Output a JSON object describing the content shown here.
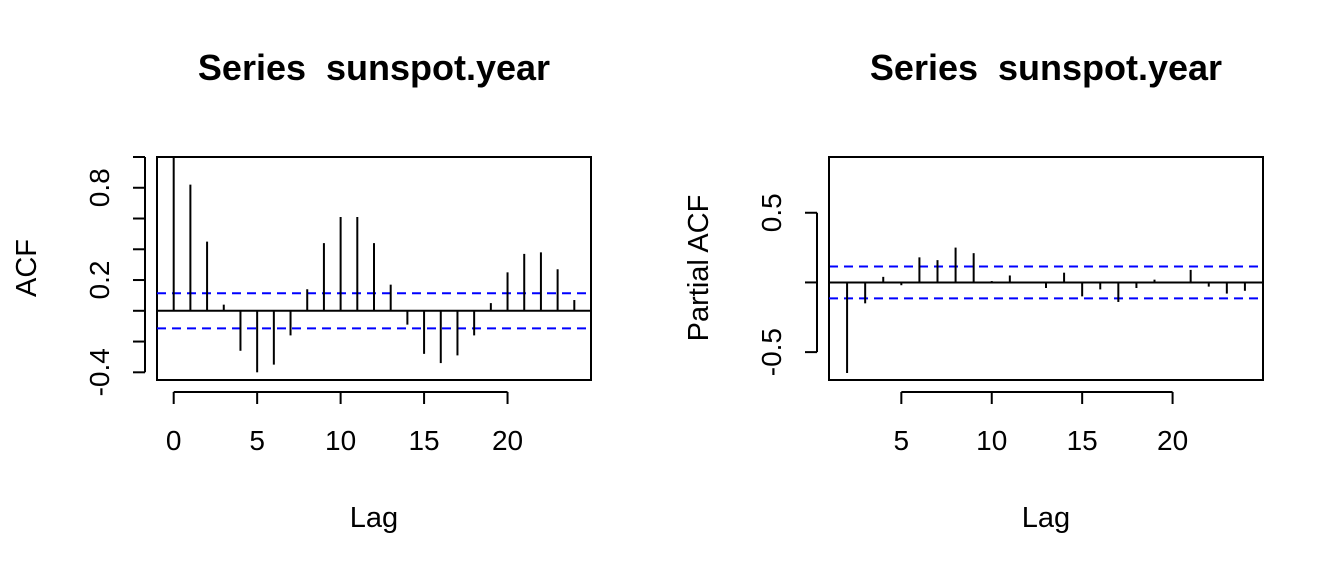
{
  "chart_data": [
    {
      "type": "bar",
      "title": "Series  sunspot.year",
      "xlabel": "Lag",
      "ylabel": "ACF",
      "xlim": [
        -1,
        25
      ],
      "ylim": [
        -0.45,
        1.0
      ],
      "x_ticks": [
        0,
        5,
        10,
        15,
        20
      ],
      "y_ticks": [
        -0.4,
        -0.2,
        0.0,
        0.2,
        0.4,
        0.6,
        0.8,
        1.0
      ],
      "y_tick_labels": [
        "-0.4",
        "",
        "",
        "0.2",
        "",
        "",
        "0.8",
        ""
      ],
      "zero_line": true,
      "confidence_bounds": [
        0.114,
        -0.114
      ],
      "bound_color": "#0000ff",
      "lags": [
        0,
        1,
        2,
        3,
        4,
        5,
        6,
        7,
        8,
        9,
        10,
        11,
        12,
        13,
        14,
        15,
        16,
        17,
        18,
        19,
        20,
        21,
        22,
        23,
        24
      ],
      "values": [
        1.0,
        0.82,
        0.45,
        0.04,
        -0.26,
        -0.4,
        -0.35,
        -0.16,
        0.14,
        0.44,
        0.61,
        0.61,
        0.44,
        0.17,
        -0.09,
        -0.28,
        -0.34,
        -0.29,
        -0.16,
        0.05,
        0.25,
        0.37,
        0.38,
        0.27,
        0.07
      ]
    },
    {
      "type": "bar",
      "title": "Series  sunspot.year",
      "xlabel": "Lag",
      "ylabel": "Partial ACF",
      "xlim": [
        1,
        25
      ],
      "ylim": [
        -0.7,
        0.9
      ],
      "x_ticks": [
        5,
        10,
        15,
        20
      ],
      "y_ticks": [
        -0.5,
        0.0,
        0.5
      ],
      "y_tick_labels": [
        "-0.5",
        "",
        "0.5"
      ],
      "zero_line": true,
      "confidence_bounds": [
        0.114,
        -0.114
      ],
      "bound_color": "#0000ff",
      "lags": [
        1,
        2,
        3,
        4,
        5,
        6,
        7,
        8,
        9,
        10,
        11,
        12,
        13,
        14,
        15,
        16,
        17,
        18,
        19,
        20,
        21,
        22,
        23,
        24
      ],
      "values": [
        0.82,
        -0.65,
        -0.15,
        0.04,
        -0.02,
        0.18,
        0.16,
        0.25,
        0.21,
        0.01,
        0.05,
        0.0,
        -0.04,
        0.07,
        -0.1,
        -0.05,
        -0.14,
        -0.04,
        0.02,
        0.0,
        0.09,
        -0.03,
        -0.08,
        -0.06
      ]
    }
  ]
}
